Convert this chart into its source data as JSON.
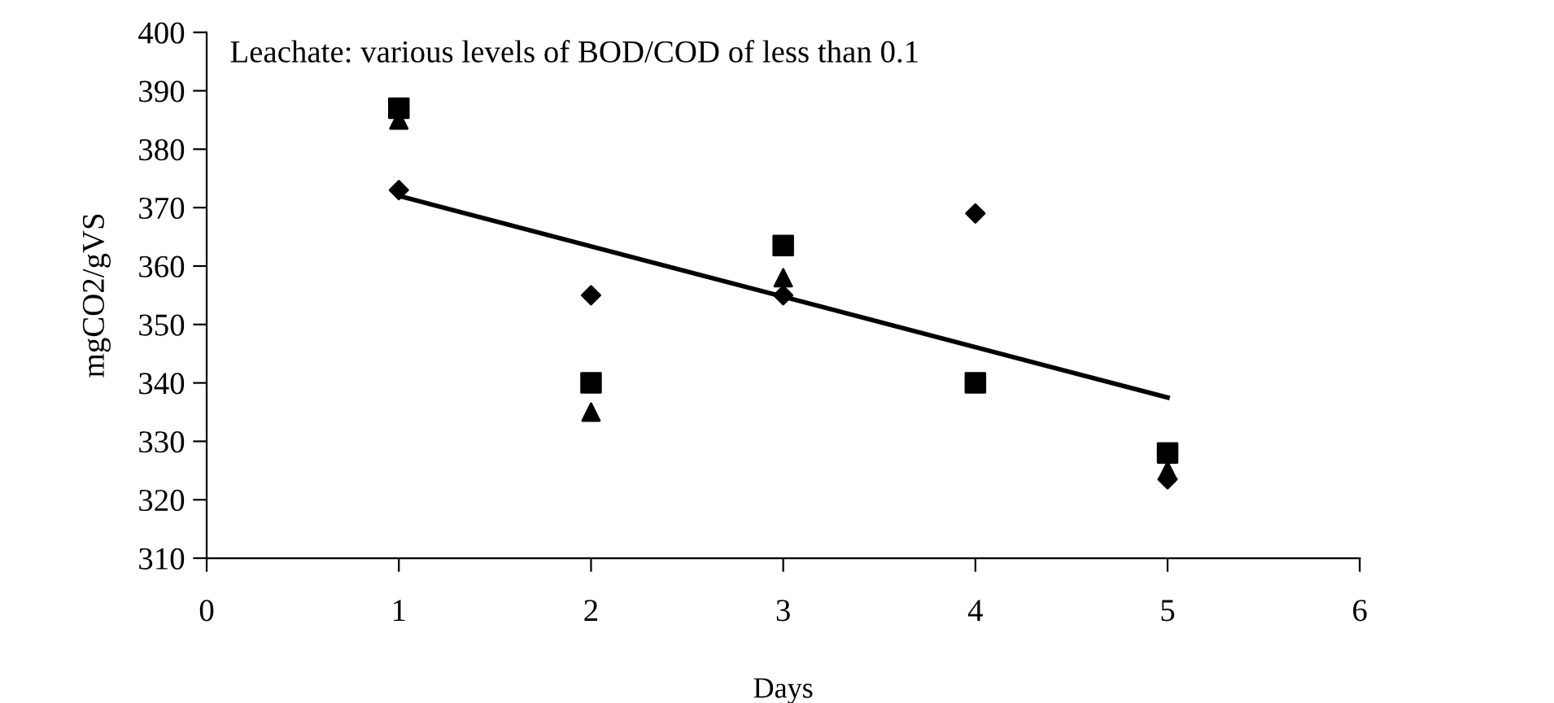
{
  "chart_data": {
    "type": "scatter",
    "xlabel": "Days",
    "ylabel": "mgCO2/gVS",
    "annotations": [
      "Leachate: various levels of BOD/COD of less than 0.1"
    ],
    "x": [
      1,
      2,
      3,
      4,
      5
    ],
    "series": [
      {
        "color": "#000000",
        "marker": "square",
        "values": [
          387,
          340,
          363.5,
          340,
          328
        ]
      },
      {
        "color": "#000000",
        "marker": "diamond",
        "values": [
          373,
          355,
          355,
          369,
          323.5
        ]
      },
      {
        "color": "#000000",
        "marker": "triangle",
        "values": [
          385,
          335,
          358,
          null,
          325
        ]
      },
      {
        "type": "line",
        "color": "#000000",
        "marker": "none",
        "x": [
          1,
          5
        ],
        "values": [
          372,
          337.5
        ]
      }
    ],
    "xlim": [
      0,
      6
    ],
    "xticks": [
      0,
      1,
      2,
      3,
      4,
      5,
      6
    ],
    "ylim": [
      310,
      400
    ],
    "yticks": [
      310,
      320,
      330,
      340,
      350,
      360,
      370,
      380,
      390,
      400
    ],
    "grid": false,
    "legend": false
  }
}
